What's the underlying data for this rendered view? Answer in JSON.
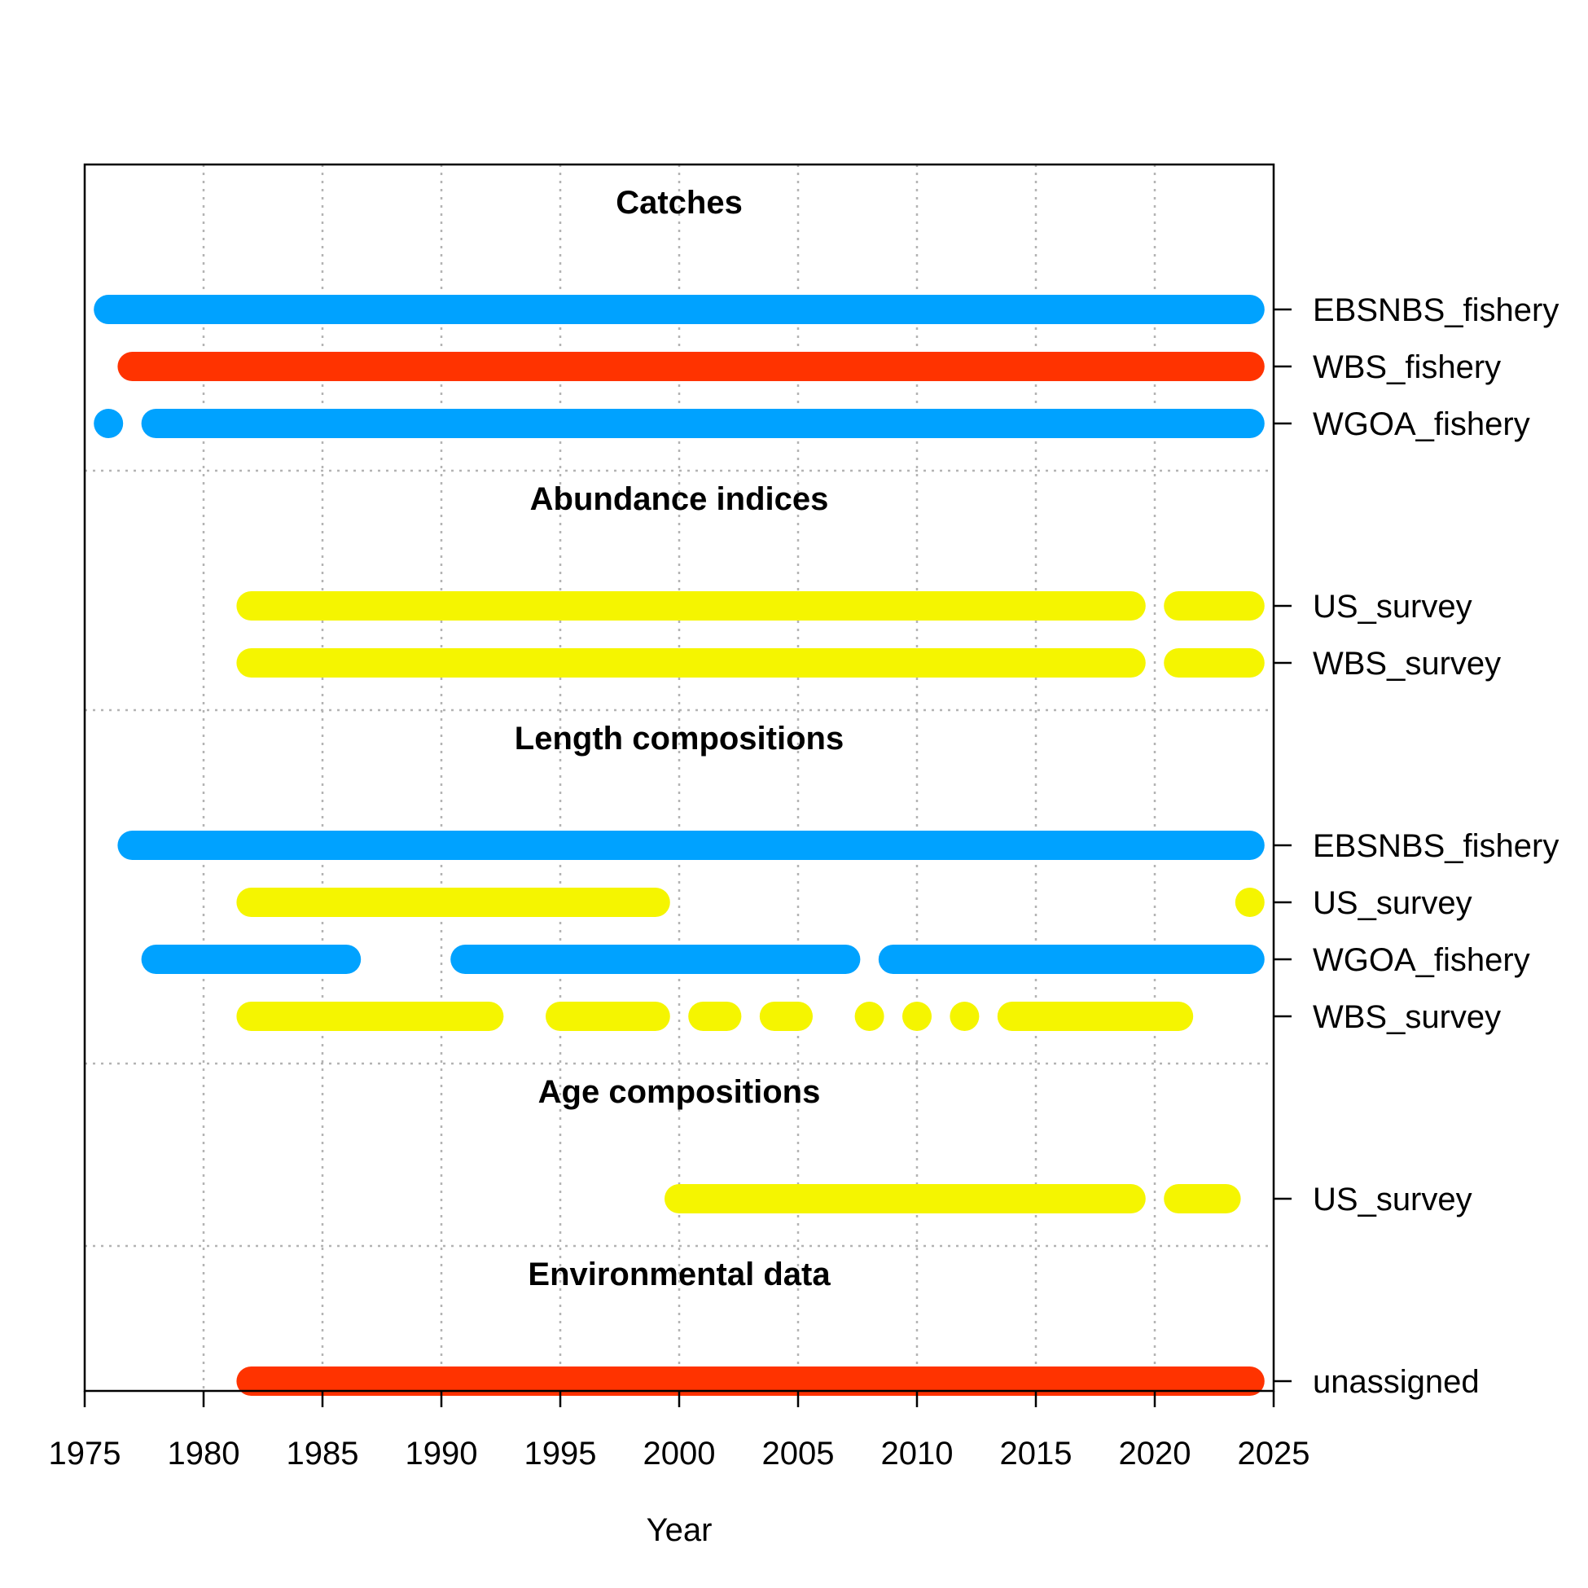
{
  "chart_data": {
    "type": "timeline",
    "xlabel": "Year",
    "xlim": [
      1975,
      2025
    ],
    "x_ticks": [
      1975,
      1980,
      1985,
      1990,
      1995,
      2000,
      2005,
      2010,
      2015,
      2020,
      2025
    ],
    "grid": true,
    "colors": {
      "blue": "#00A2FF",
      "red": "#FF3300",
      "yellow": "#F5F500"
    },
    "sections": [
      {
        "title": "Catches",
        "rows": [
          {
            "label": "EBSNBS_fishery",
            "color": "blue",
            "segments": [
              [
                1976,
                2024
              ]
            ]
          },
          {
            "label": "WBS_fishery",
            "color": "red",
            "segments": [
              [
                1977,
                2024
              ]
            ]
          },
          {
            "label": "WGOA_fishery",
            "color": "blue",
            "segments": [
              [
                1976,
                1976
              ],
              [
                1978,
                2024
              ]
            ]
          }
        ]
      },
      {
        "title": "Abundance indices",
        "rows": [
          {
            "label": "US_survey",
            "color": "yellow",
            "segments": [
              [
                1982,
                2019
              ],
              [
                2021,
                2024
              ]
            ]
          },
          {
            "label": "WBS_survey",
            "color": "yellow",
            "segments": [
              [
                1982,
                2019
              ],
              [
                2021,
                2024
              ]
            ]
          }
        ]
      },
      {
        "title": "Length compositions",
        "rows": [
          {
            "label": "EBSNBS_fishery",
            "color": "blue",
            "segments": [
              [
                1977,
                2024
              ]
            ]
          },
          {
            "label": "US_survey",
            "color": "yellow",
            "segments": [
              [
                1982,
                1999
              ],
              [
                2024,
                2024
              ]
            ]
          },
          {
            "label": "WGOA_fishery",
            "color": "blue",
            "segments": [
              [
                1978,
                1986
              ],
              [
                1991,
                2007
              ],
              [
                2009,
                2024
              ]
            ]
          },
          {
            "label": "WBS_survey",
            "color": "yellow",
            "segments": [
              [
                1982,
                1992
              ],
              [
                1995,
                1999
              ],
              [
                2001,
                2002
              ],
              [
                2004,
                2005
              ],
              [
                2008,
                2008
              ],
              [
                2010,
                2010
              ],
              [
                2012,
                2012
              ],
              [
                2014,
                2021
              ]
            ]
          }
        ]
      },
      {
        "title": "Age compositions",
        "rows": [
          {
            "label": "US_survey",
            "color": "yellow",
            "segments": [
              [
                2000,
                2019
              ],
              [
                2021,
                2023
              ]
            ]
          }
        ]
      },
      {
        "title": "Environmental data",
        "rows": [
          {
            "label": "unassigned",
            "color": "red",
            "segments": [
              [
                1982,
                2024
              ]
            ]
          }
        ]
      }
    ]
  }
}
